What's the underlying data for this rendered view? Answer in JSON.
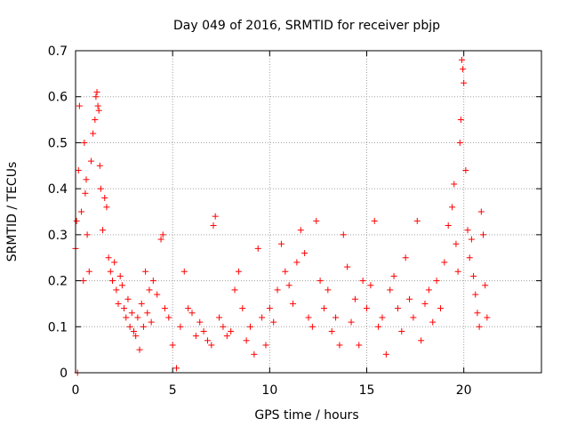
{
  "chart_data": {
    "type": "scatter",
    "title": "Day 049 of 2016, SRMTID for receiver pbjp",
    "xlabel": "GPS time / hours",
    "ylabel": "SRMTID / TECUs",
    "xlim": [
      0,
      24
    ],
    "ylim": [
      0,
      0.7
    ],
    "xticks": [
      0,
      5,
      10,
      15,
      20
    ],
    "xtick_labels": [
      "0",
      "5",
      "10",
      "15",
      "20"
    ],
    "yticks": [
      0,
      0.1,
      0.2,
      0.3,
      0.4,
      0.5,
      0.6,
      0.7
    ],
    "ytick_labels": [
      "0",
      "0.1",
      "0.2",
      "0.3",
      "0.4",
      "0.5",
      "0.6",
      "0.7"
    ],
    "grid": true,
    "marker": "+",
    "marker_color": "#ff0000",
    "series": [
      {
        "name": "SRMTID",
        "x": [
          0.0,
          0.05,
          0.1,
          0.15,
          0.2,
          0.3,
          0.4,
          0.45,
          0.5,
          0.55,
          0.6,
          0.7,
          0.8,
          0.9,
          1.0,
          1.05,
          1.1,
          1.15,
          1.2,
          1.25,
          1.3,
          1.4,
          1.5,
          1.6,
          1.7,
          1.8,
          1.9,
          2.0,
          2.1,
          2.2,
          2.3,
          2.4,
          2.5,
          2.6,
          2.7,
          2.8,
          2.9,
          3.0,
          3.1,
          3.2,
          3.3,
          3.4,
          3.5,
          3.6,
          3.7,
          3.8,
          3.9,
          4.0,
          4.2,
          4.4,
          4.5,
          4.6,
          4.8,
          5.0,
          5.2,
          5.4,
          5.6,
          5.8,
          6.0,
          6.2,
          6.4,
          6.6,
          6.8,
          7.0,
          7.1,
          7.2,
          7.4,
          7.6,
          7.8,
          8.0,
          8.2,
          8.4,
          8.6,
          8.8,
          9.0,
          9.2,
          9.4,
          9.6,
          9.8,
          10.0,
          10.2,
          10.4,
          10.6,
          10.8,
          11.0,
          11.2,
          11.4,
          11.6,
          11.8,
          12.0,
          12.2,
          12.4,
          12.6,
          12.8,
          13.0,
          13.2,
          13.4,
          13.6,
          13.8,
          14.0,
          14.2,
          14.4,
          14.6,
          14.8,
          15.0,
          15.2,
          15.4,
          15.6,
          15.8,
          16.0,
          16.2,
          16.4,
          16.6,
          16.8,
          17.0,
          17.2,
          17.4,
          17.6,
          17.8,
          18.0,
          18.2,
          18.4,
          18.6,
          18.8,
          19.0,
          19.2,
          19.4,
          19.5,
          19.6,
          19.7,
          19.8,
          19.85,
          19.9,
          19.95,
          20.0,
          20.1,
          20.2,
          20.3,
          20.4,
          20.5,
          20.6,
          20.7,
          20.8,
          20.9,
          21.0,
          21.1,
          21.2
        ],
        "y": [
          0.27,
          0.33,
          0.0,
          0.44,
          0.58,
          0.35,
          0.2,
          0.5,
          0.39,
          0.42,
          0.3,
          0.22,
          0.46,
          0.52,
          0.55,
          0.6,
          0.61,
          0.58,
          0.57,
          0.45,
          0.4,
          0.31,
          0.38,
          0.36,
          0.25,
          0.22,
          0.2,
          0.24,
          0.18,
          0.15,
          0.21,
          0.19,
          0.14,
          0.12,
          0.16,
          0.1,
          0.13,
          0.09,
          0.08,
          0.12,
          0.05,
          0.15,
          0.1,
          0.22,
          0.13,
          0.18,
          0.11,
          0.2,
          0.17,
          0.29,
          0.3,
          0.14,
          0.12,
          0.06,
          0.01,
          0.1,
          0.22,
          0.14,
          0.13,
          0.08,
          0.11,
          0.09,
          0.07,
          0.06,
          0.32,
          0.34,
          0.12,
          0.1,
          0.08,
          0.09,
          0.18,
          0.22,
          0.14,
          0.07,
          0.1,
          0.04,
          0.27,
          0.12,
          0.06,
          0.14,
          0.11,
          0.18,
          0.28,
          0.22,
          0.19,
          0.15,
          0.24,
          0.31,
          0.26,
          0.12,
          0.1,
          0.33,
          0.2,
          0.14,
          0.18,
          0.09,
          0.12,
          0.06,
          0.3,
          0.23,
          0.11,
          0.16,
          0.06,
          0.2,
          0.14,
          0.19,
          0.33,
          0.1,
          0.12,
          0.04,
          0.18,
          0.21,
          0.14,
          0.09,
          0.25,
          0.16,
          0.12,
          0.33,
          0.07,
          0.15,
          0.18,
          0.11,
          0.2,
          0.14,
          0.24,
          0.32,
          0.36,
          0.41,
          0.28,
          0.22,
          0.5,
          0.55,
          0.68,
          0.66,
          0.63,
          0.44,
          0.31,
          0.25,
          0.29,
          0.21,
          0.17,
          0.13,
          0.1,
          0.35,
          0.3,
          0.19,
          0.12
        ]
      }
    ]
  }
}
